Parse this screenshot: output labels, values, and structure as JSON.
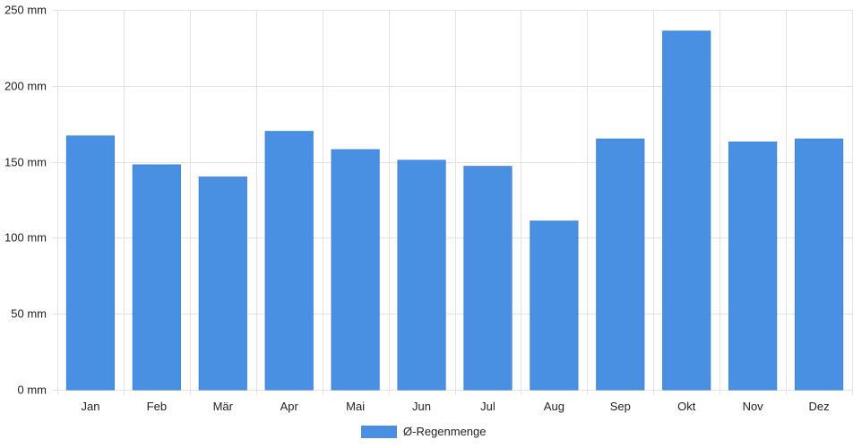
{
  "chart_data": {
    "type": "bar",
    "categories": [
      "Jan",
      "Feb",
      "Mär",
      "Apr",
      "Mai",
      "Jun",
      "Jul",
      "Aug",
      "Sep",
      "Okt",
      "Nov",
      "Dez"
    ],
    "series": [
      {
        "name": "Ø-Regenmenge",
        "values": [
          167,
          148,
          140,
          170,
          158,
          151,
          147,
          111,
          165,
          236,
          163,
          165
        ],
        "color": "#4a90e2"
      }
    ],
    "ylim": [
      0,
      250
    ],
    "yticks": [
      0,
      50,
      100,
      150,
      200,
      250
    ],
    "yunit": "mm",
    "grid": true,
    "legend": "bottom"
  }
}
